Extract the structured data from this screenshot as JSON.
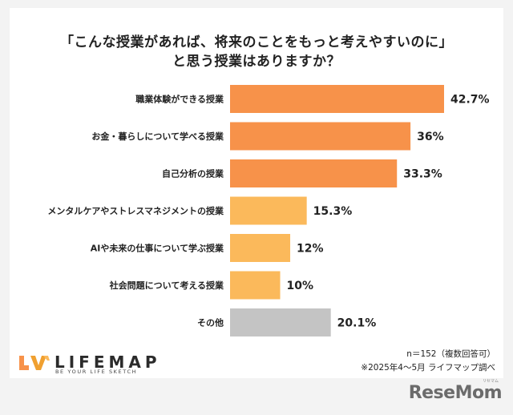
{
  "title": {
    "line1": "「こんな授業があれば、将来のことをもっと考えやすいのに」",
    "line2": "と思う授業はありますか？"
  },
  "chart_data": {
    "type": "bar",
    "orientation": "horizontal",
    "categories": [
      "職業体験ができる授業",
      "お金・暮らしについて学べる授業",
      "自己分析の授業",
      "メンタルケアやストレスマネジメントの授業",
      "AIや未来の仕事について学ぶ授業",
      "社会問題について考える授業",
      "その他"
    ],
    "values": [
      42.7,
      36,
      33.3,
      15.3,
      12,
      10,
      20.1
    ],
    "value_labels": [
      "42.7%",
      "36%",
      "33.3%",
      "15.3%",
      "12%",
      "10%",
      "20.1%"
    ],
    "colors": [
      "#f7924a",
      "#f7924a",
      "#f7924a",
      "#fbb95b",
      "#fbb95b",
      "#fbb95b",
      "#c4c4c4"
    ],
    "xlim": [
      0,
      45
    ],
    "grid": false,
    "legend": "none"
  },
  "notes": {
    "n": "n＝152（複数回答可）",
    "source": "※2025年4～5月 ライフマップ調べ"
  },
  "branding": {
    "logo_word": "LIFEMAP",
    "logo_tag": "BE YOUR LIFE SKETCH",
    "publisher": "ReseMom",
    "publisher_kana": "リセマム"
  }
}
